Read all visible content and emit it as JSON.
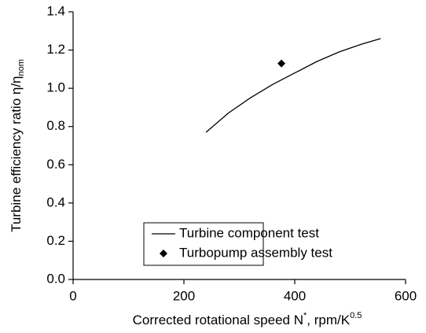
{
  "chart_data": {
    "type": "line",
    "x_label_parts": [
      "Corrected rotational speed N",
      "*",
      ", rpm/K",
      "0.5"
    ],
    "y_label_parts": [
      "Turbine efficiency ratio η/η",
      "nom"
    ],
    "xlim": [
      0,
      600
    ],
    "xticks": [
      0,
      200,
      400,
      600
    ],
    "ylim": [
      0,
      1.4
    ],
    "yticks": [
      {
        "value": 0,
        "label": "0.0"
      },
      0.2,
      0.4,
      0.6,
      0.8,
      {
        "value": 1,
        "label": "1.0"
      },
      1.2,
      1.4
    ],
    "series": [
      {
        "name": "Turbine component test",
        "type": "line",
        "color": "#000000",
        "x": [
          240,
          280,
          320,
          360,
          400,
          440,
          480,
          520,
          555
        ],
        "values": [
          0.77,
          0.87,
          0.95,
          1.02,
          1.08,
          1.14,
          1.19,
          1.23,
          1.26
        ]
      },
      {
        "name": "Turbopump assembly test",
        "type": "scatter",
        "color": "#000000",
        "x": [
          376
        ],
        "values": [
          1.13
        ]
      }
    ]
  }
}
